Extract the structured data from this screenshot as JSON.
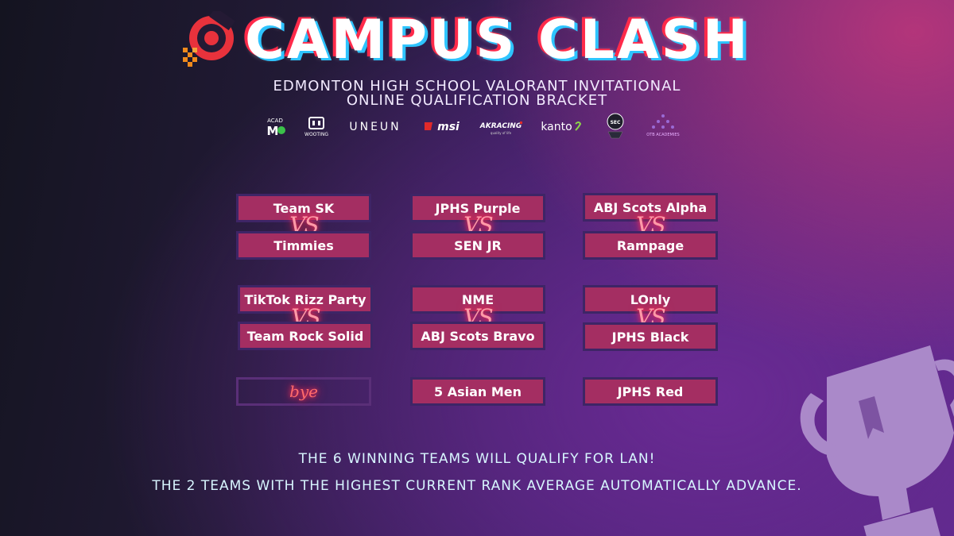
{
  "header": {
    "title": "CAMPUS CLASH",
    "subtitle_line1": "EDMONTON HIGH SCHOOL VALORANT INVITATIONAL",
    "subtitle_line2": "ONLINE QUALIFICATION BRACKET"
  },
  "sponsors": [
    {
      "name": "ACAD ME",
      "icon": "acadme-logo"
    },
    {
      "name": "WOOTING",
      "icon": "wooting-logo"
    },
    {
      "name": "UNEUN",
      "icon": "uneun-logo"
    },
    {
      "name": "msi",
      "icon": "msi-logo"
    },
    {
      "name": "AKRACING",
      "icon": "akracing-logo"
    },
    {
      "name": "kanto",
      "icon": "kanto-logo"
    },
    {
      "name": "SEC",
      "icon": "sec-logo"
    },
    {
      "name": "OTB ACADEMIES",
      "icon": "otb-logo"
    }
  ],
  "vs_label": "VS",
  "bye_label": "bye",
  "matches": [
    {
      "team1": "Team SK",
      "team2": "Timmies"
    },
    {
      "team1": "JPHS Purple",
      "team2": "SEN JR"
    },
    {
      "team1": "ABJ Scots Alpha",
      "team2": "Rampage"
    },
    {
      "team1": "TikTok Rizz Party",
      "team2": "Team Rock Solid"
    },
    {
      "team1": "NME",
      "team2": "ABJ Scots Bravo"
    },
    {
      "team1": "LOnly",
      "team2": "JPHS Black"
    }
  ],
  "byes": [
    "5 Asian Men",
    "JPHS Red"
  ],
  "footer": {
    "line1": "THE 6 WINNING TEAMS WILL QUALIFY FOR LAN!",
    "line2": "THE 2 TEAMS WITH THE HIGHEST CURRENT RANK AVERAGE AUTOMATICALLY ADVANCE."
  },
  "colors": {
    "team_box": "#a42e62",
    "box_border": "#3e2566",
    "vs_glow": "#ff2d55",
    "title_red": "#ff2a4a",
    "title_blue": "#2ec4ff"
  }
}
